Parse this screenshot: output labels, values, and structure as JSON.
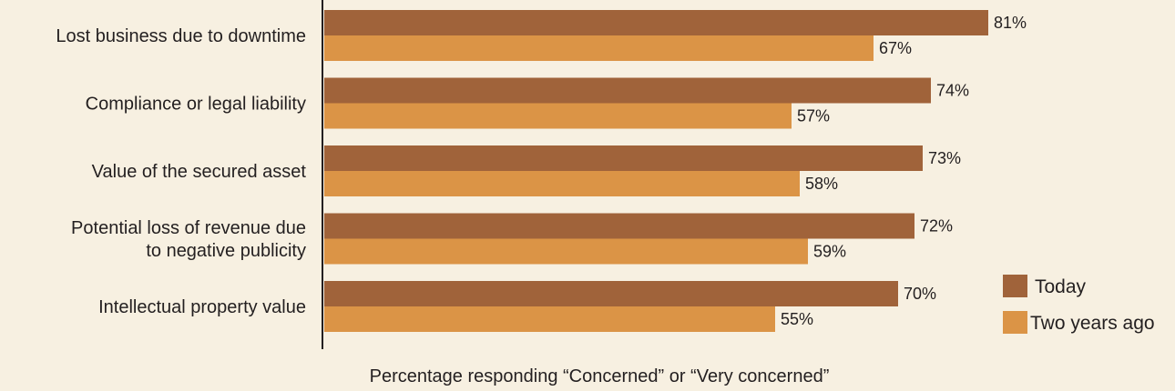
{
  "chart_data": {
    "type": "bar",
    "orientation": "horizontal",
    "categories": [
      "Lost business due to downtime",
      "Compliance or legal liability",
      "Value of the secured asset",
      "Potential loss of revenue due to negative publicity",
      "Intellectual property value"
    ],
    "category_lines": [
      [
        "Lost business due to downtime"
      ],
      [
        "Compliance or legal liability"
      ],
      [
        "Value of the secured asset"
      ],
      [
        "Potential loss of revenue due",
        "to negative publicity"
      ],
      [
        "Intellectual property value"
      ]
    ],
    "series": [
      {
        "name": "Today",
        "values": [
          81,
          74,
          73,
          72,
          70
        ],
        "color": "#a0633a"
      },
      {
        "name": "Two years ago",
        "values": [
          67,
          57,
          58,
          59,
          55
        ],
        "color": "#db9446"
      }
    ],
    "value_suffix": "%",
    "xlabel": "Percentage responding “Concerned” or “Very concerned”",
    "ylabel": "",
    "xlim": [
      0,
      100
    ],
    "grid": false,
    "legend_position": "right",
    "background": "#f7f0e1"
  }
}
